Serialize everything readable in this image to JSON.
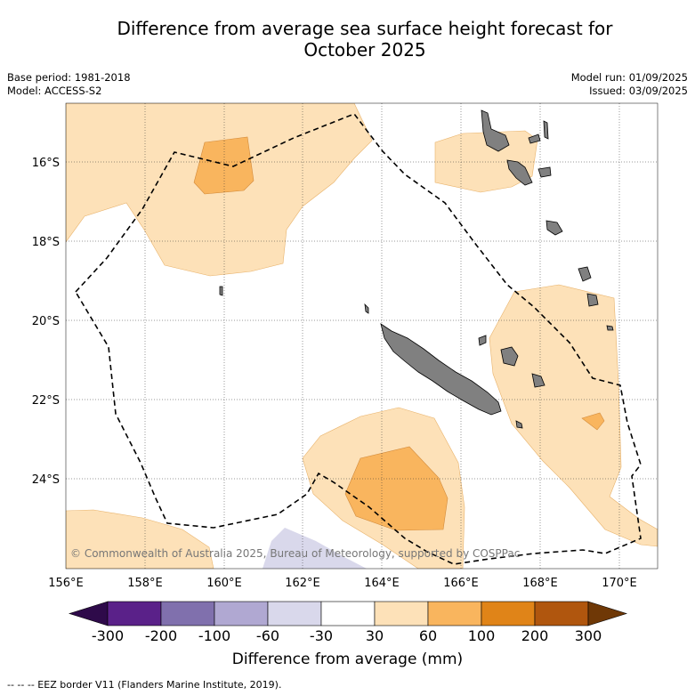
{
  "title_line1": "Difference from average sea surface height forecast for",
  "title_line2": "October 2025",
  "base_period": "Base period: 1981-2018",
  "model": "Model: ACCESS-S2",
  "model_run": "Model run: 01/09/2025",
  "issued": "Issued: 03/09/2025",
  "copyright": "© Commonwealth of Australia 2025, Bureau of Meteorology, supported by COSPPac",
  "lon_labels": [
    "156°E",
    "158°E",
    "160°E",
    "162°E",
    "164°E",
    "166°E",
    "168°E",
    "170°E"
  ],
  "lat_labels": [
    "16°S",
    "18°S",
    "20°S",
    "22°S",
    "24°S"
  ],
  "colorbar": {
    "labels": [
      "-300",
      "-200",
      "-100",
      "-60",
      "-30",
      "30",
      "60",
      "100",
      "200",
      "300"
    ],
    "colors": [
      "#2e0a4a",
      "#5a2189",
      "#8070ad",
      "#b0a8d2",
      "#d9d8eb",
      "#ffffff",
      "#fde1b8",
      "#f9b55e",
      "#e08418",
      "#b0560e",
      "#6f3806"
    ],
    "title": "Difference from average (mm)"
  },
  "footnote": "-- -- -- EEZ border V11 (Flanders Marine Institute, 2019)."
}
